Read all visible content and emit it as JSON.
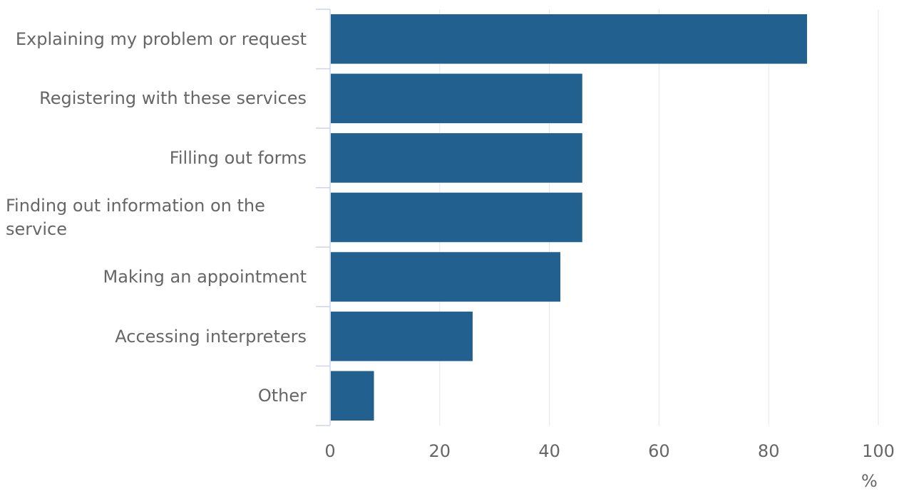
{
  "chart_data": {
    "type": "bar",
    "orientation": "horizontal",
    "categories": [
      "Explaining my problem or request",
      "Registering with these services",
      "Filling out forms",
      "Finding out information on the service",
      "Making an appointment",
      "Accessing interpreters",
      "Other"
    ],
    "values": [
      87,
      46,
      46,
      46,
      42,
      26,
      8
    ],
    "xlim": [
      0,
      100
    ],
    "xticks": [
      0,
      20,
      40,
      60,
      80,
      100
    ],
    "xunit": "%",
    "grid": "vertical",
    "legend": "none",
    "bar_color": "#21608f",
    "grid_color": "#e6e6e6",
    "axis_color": "#ccd6eb",
    "text_color": "#666666"
  }
}
